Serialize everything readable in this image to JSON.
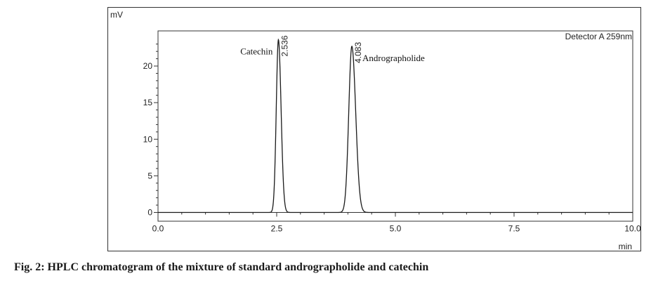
{
  "caption": "Fig. 2: HPLC chromatogram of the mixture of standard andrographolide and catechin",
  "chart_data": {
    "type": "line",
    "detector_label": "Detector A 259nm",
    "ylabel": "mV",
    "xlabel": "min",
    "xlim": [
      0,
      10
    ],
    "ylim": [
      -1.2,
      24.8
    ],
    "x_ticks": [
      "0.0",
      "2.5",
      "5.0",
      "7.5",
      "10.0"
    ],
    "x_tick_values": [
      0,
      2.5,
      5,
      7.5,
      10
    ],
    "y_ticks": [
      "0",
      "5",
      "10",
      "15",
      "20"
    ],
    "y_tick_values": [
      0,
      5,
      10,
      15,
      20
    ],
    "grid": false,
    "series": [
      {
        "color": "#1a1a1a",
        "baseline": 0,
        "peaks": [
          {
            "retention_time": 2.536,
            "height": 23.6,
            "width_sigma": 0.045,
            "rt_label": "2.536",
            "compound": "Catechin"
          },
          {
            "retention_time": 4.083,
            "height": 22.7,
            "width_sigma": 0.065,
            "rt_label": "4.083",
            "compound": "Andrographolide"
          }
        ]
      }
    ]
  }
}
